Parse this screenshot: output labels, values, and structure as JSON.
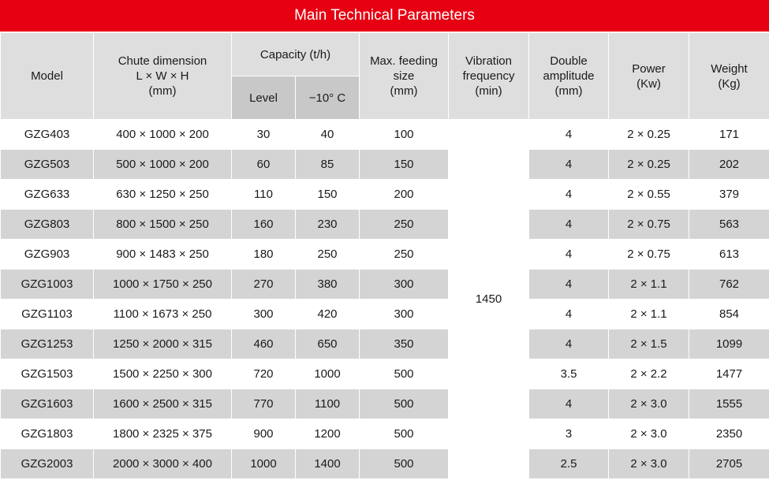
{
  "title": "Main Technical Parameters",
  "headers": {
    "model": "Model",
    "chute_line1": "Chute dimension",
    "chute_line2": "L × W × H",
    "chute_line3": "(mm)",
    "capacity": "Capacity (t/h)",
    "capacity_level": "Level",
    "capacity_minus10": "−10°  C",
    "feed_line1": "Max. feeding",
    "feed_line2": "size",
    "feed_line3": "(mm)",
    "vib_line1": "Vibration",
    "vib_line2": "frequency",
    "vib_line3": "(min)",
    "amp_line1": "Double",
    "amp_line2": "amplitude",
    "amp_line3": "(mm)",
    "power_line1": "Power",
    "power_line2": "(Kw)",
    "weight_line1": "Weight",
    "weight_line2": "(Kg)"
  },
  "vibration_frequency": "1450",
  "rows": [
    {
      "model": "GZG403",
      "chute": "400 × 1000 × 200",
      "level": "30",
      "minus10": "40",
      "feed": "100",
      "amplitude": "4",
      "power": "2 × 0.25",
      "weight": "171"
    },
    {
      "model": "GZG503",
      "chute": "500 × 1000 × 200",
      "level": "60",
      "minus10": "85",
      "feed": "150",
      "amplitude": "4",
      "power": "2 × 0.25",
      "weight": "202"
    },
    {
      "model": "GZG633",
      "chute": "630 × 1250 × 250",
      "level": "110",
      "minus10": "150",
      "feed": "200",
      "amplitude": "4",
      "power": "2 × 0.55",
      "weight": "379"
    },
    {
      "model": "GZG803",
      "chute": "800 × 1500 × 250",
      "level": "160",
      "minus10": "230",
      "feed": "250",
      "amplitude": "4",
      "power": "2 × 0.75",
      "weight": "563"
    },
    {
      "model": "GZG903",
      "chute": "900 × 1483 × 250",
      "level": "180",
      "minus10": "250",
      "feed": "250",
      "amplitude": "4",
      "power": "2 × 0.75",
      "weight": "613"
    },
    {
      "model": "GZG1003",
      "chute": "1000 × 1750 × 250",
      "level": "270",
      "minus10": "380",
      "feed": "300",
      "amplitude": "4",
      "power": "2 × 1.1",
      "weight": "762"
    },
    {
      "model": "GZG1103",
      "chute": "1100 × 1673 × 250",
      "level": "300",
      "minus10": "420",
      "feed": "300",
      "amplitude": "4",
      "power": "2 × 1.1",
      "weight": "854"
    },
    {
      "model": "GZG1253",
      "chute": "1250 × 2000 × 315",
      "level": "460",
      "minus10": "650",
      "feed": "350",
      "amplitude": "4",
      "power": "2 × 1.5",
      "weight": "1099"
    },
    {
      "model": "GZG1503",
      "chute": "1500 × 2250 × 300",
      "level": "720",
      "minus10": "1000",
      "feed": "500",
      "amplitude": "3.5",
      "power": "2 × 2.2",
      "weight": "1477"
    },
    {
      "model": "GZG1603",
      "chute": "1600 × 2500 × 315",
      "level": "770",
      "minus10": "1100",
      "feed": "500",
      "amplitude": "4",
      "power": "2 × 3.0",
      "weight": "1555"
    },
    {
      "model": "GZG1803",
      "chute": "1800 × 2325 × 375",
      "level": "900",
      "minus10": "1200",
      "feed": "500",
      "amplitude": "3",
      "power": "2 × 3.0",
      "weight": "2350"
    },
    {
      "model": "GZG2003",
      "chute": "2000 × 3000 × 400",
      "level": "1000",
      "minus10": "1400",
      "feed": "500",
      "amplitude": "2.5",
      "power": "2 × 3.0",
      "weight": "2705"
    }
  ],
  "colors": {
    "title_bg": "#e60012",
    "header_bg": "#dedede",
    "header_sub_bg": "#c8c8c8",
    "row_alt_bg": "#d4d4d4"
  }
}
